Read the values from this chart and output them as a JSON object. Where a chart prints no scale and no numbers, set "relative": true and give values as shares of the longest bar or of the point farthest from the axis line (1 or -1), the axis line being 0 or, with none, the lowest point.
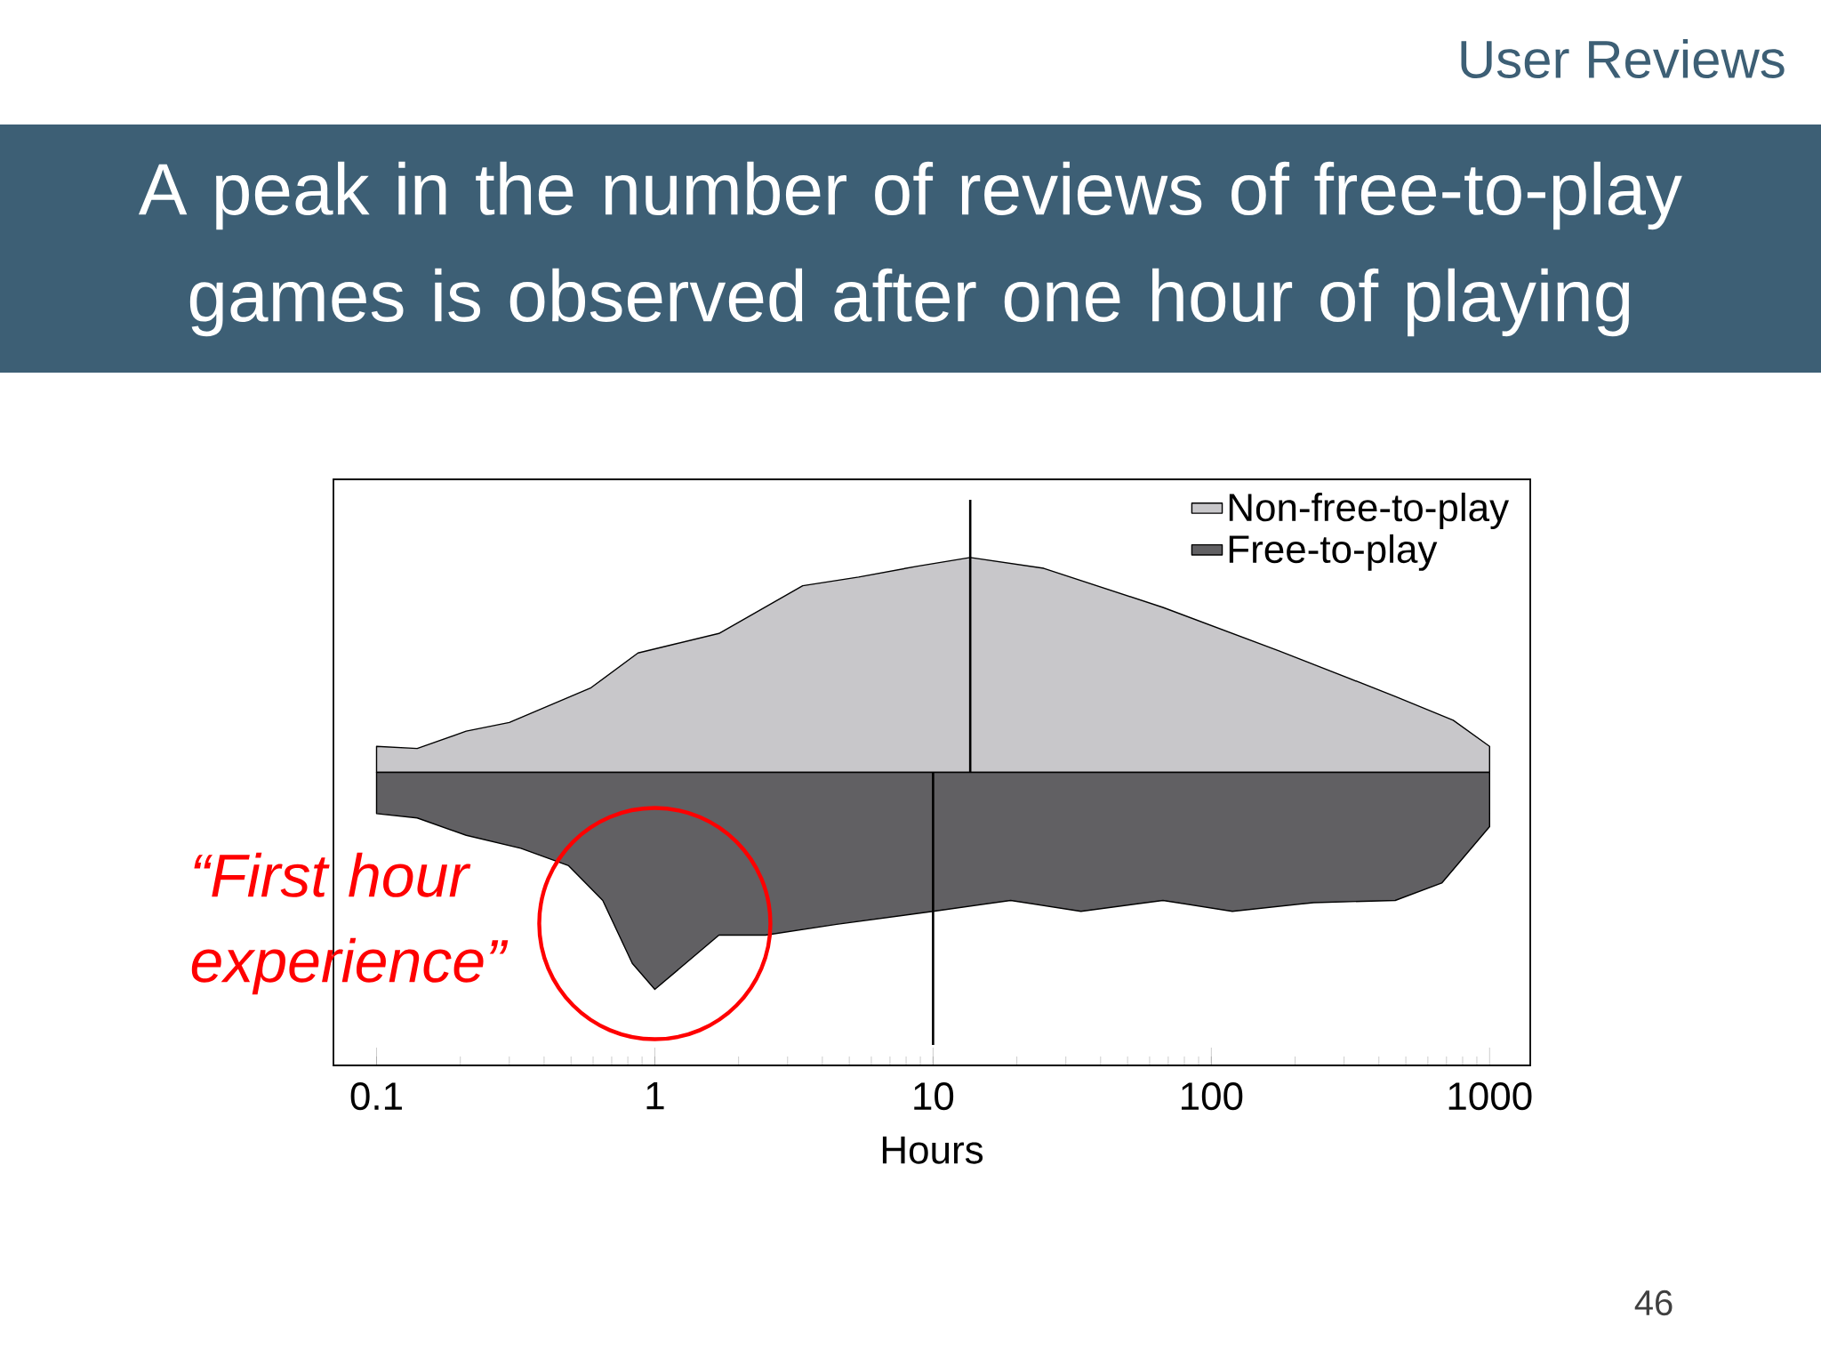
{
  "chart_data": {
    "type": "area",
    "relative": true,
    "title": "A peak in the number of reviews of free-to-play games is observed after one hour of playing",
    "xlabel": "Hours",
    "log": "x",
    "grid": false,
    "legend": "top right",
    "xlim": [
      0.07,
      1400
    ],
    "xticks": [
      0.1,
      1,
      10,
      100,
      1000
    ],
    "series": [
      {
        "name": "Non-free-to-play",
        "color": "#c8c7ca",
        "x": [
          0.1,
          0.14,
          0.21,
          0.3,
          0.59,
          0.87,
          1.17,
          1.7,
          3.4,
          5.4,
          8.8,
          13.6,
          25,
          67,
          175,
          458,
          740,
          1000
        ],
        "values": [
          0.12,
          0.11,
          0.19,
          0.23,
          0.39,
          0.55,
          0.59,
          0.64,
          0.86,
          0.9,
          0.95,
          0.99,
          0.94,
          0.76,
          0.56,
          0.35,
          0.24,
          0.12
        ]
      },
      {
        "name": "Free-to-play",
        "color": "#616063",
        "x": [
          0.1,
          0.14,
          0.21,
          0.33,
          0.49,
          0.65,
          0.83,
          1,
          1.29,
          1.7,
          2.5,
          4.5,
          10,
          19,
          34,
          67,
          119,
          233,
          458,
          673,
          1000
        ],
        "values": [
          -0.19,
          -0.21,
          -0.29,
          -0.35,
          -0.43,
          -0.59,
          -0.88,
          -1,
          -0.88,
          -0.75,
          -0.75,
          -0.7,
          -0.64,
          -0.59,
          -0.64,
          -0.59,
          -0.64,
          -0.6,
          -0.59,
          -0.51,
          -0.25
        ]
      }
    ],
    "ref_lines": [
      {
        "axis": "x",
        "value": 13.6
      },
      {
        "axis": "x",
        "value": 10
      }
    ],
    "annotations": [
      "User Reviews",
      "46",
      {
        "text": "“First hour experience”",
        "x": 1,
        "y": -1
      }
    ]
  }
}
